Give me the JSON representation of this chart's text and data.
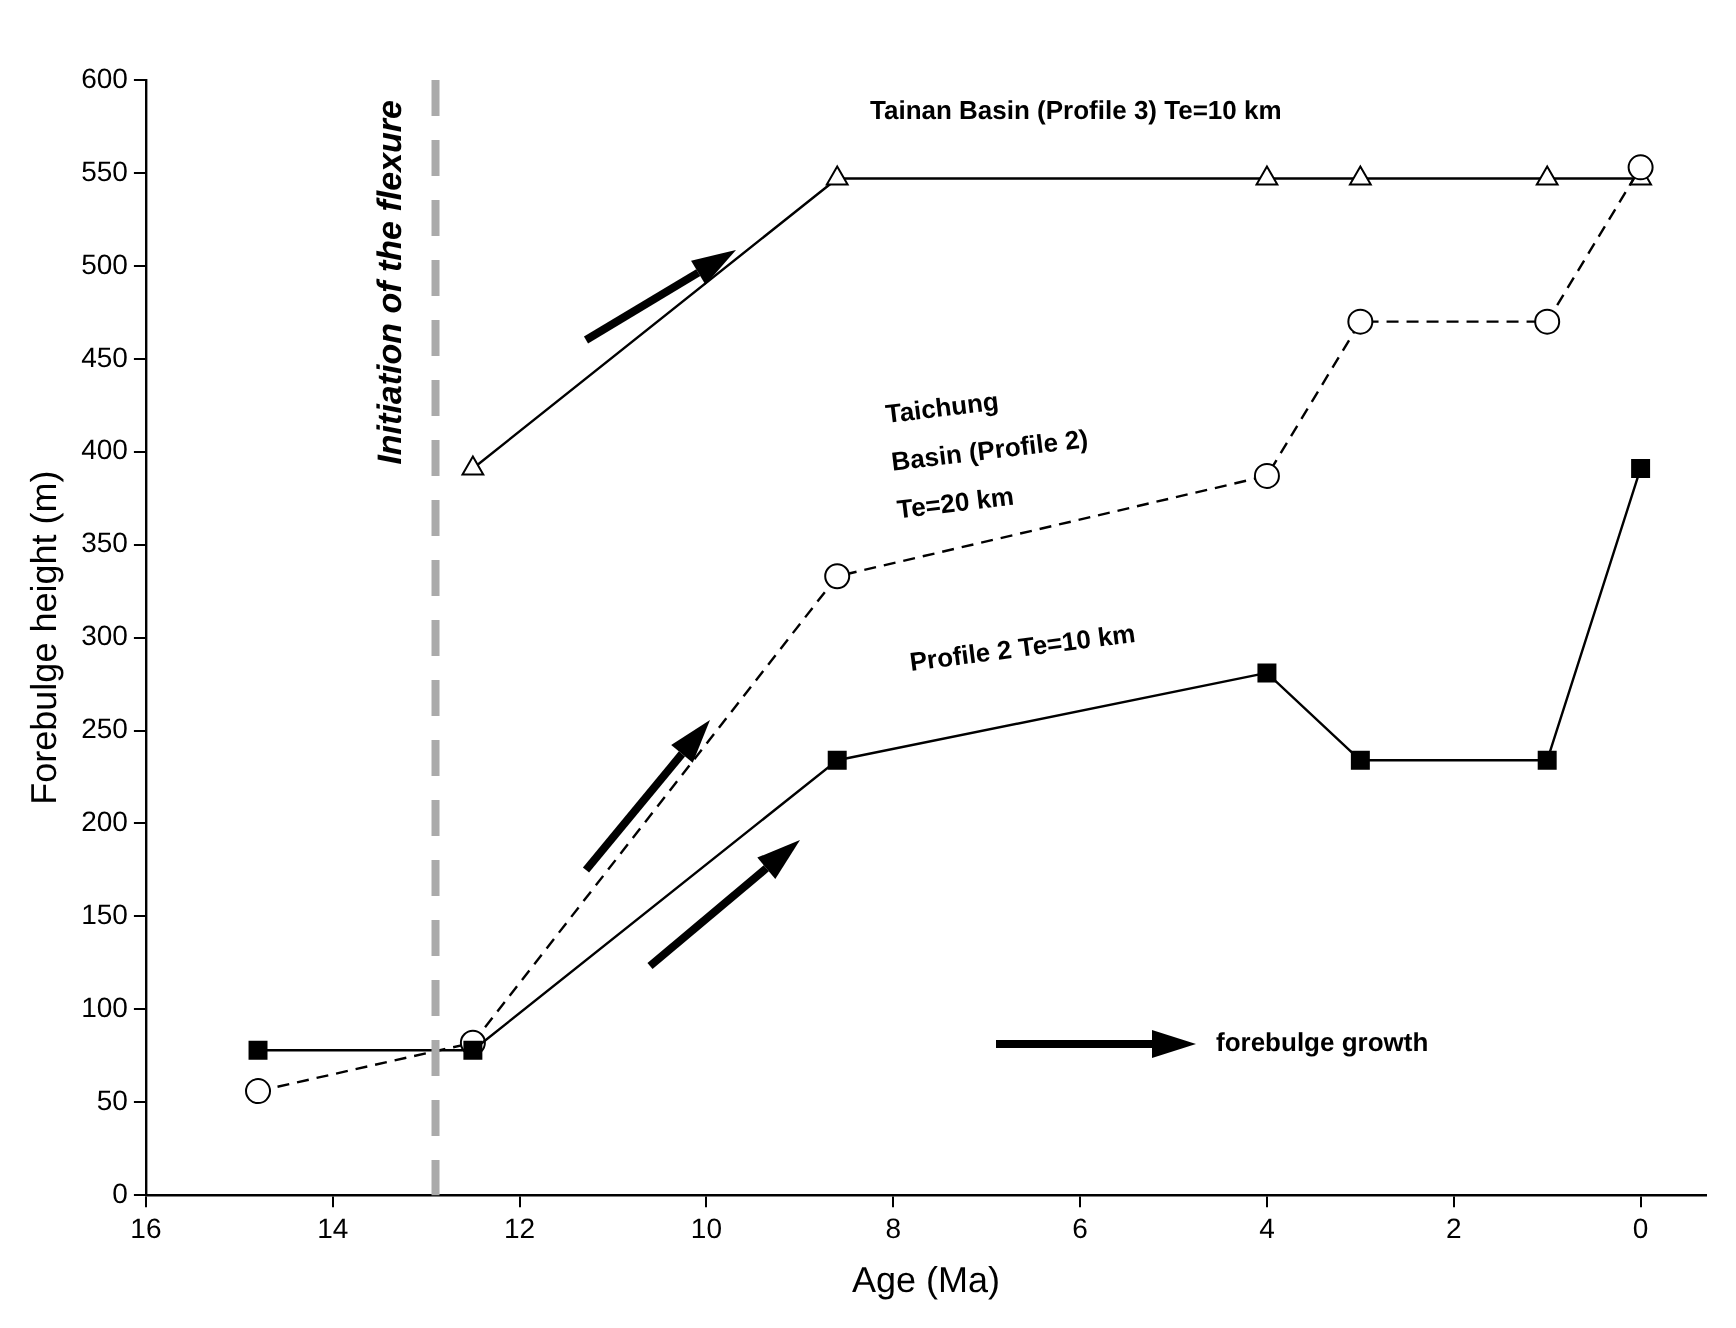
{
  "chart_data": {
    "type": "line",
    "xlabel": "Age (Ma)",
    "ylabel": "Forebulge height (m)",
    "xlim": [
      16,
      -0.7
    ],
    "xticks": [
      16,
      14,
      12,
      10,
      8,
      6,
      4,
      2,
      0
    ],
    "ylim": [
      0,
      600
    ],
    "yticks": [
      0,
      50,
      100,
      150,
      200,
      250,
      300,
      350,
      400,
      450,
      500,
      550,
      600
    ],
    "grid": false,
    "legend": false,
    "series": [
      {
        "name": "Profile 2 Te=10 km",
        "color": "#000000",
        "marker": "square",
        "line_style": "solid",
        "x": [
          14.8,
          12.5,
          8.6,
          4,
          3,
          1,
          0
        ],
        "values": [
          78,
          78,
          234,
          281,
          234,
          234,
          391
        ]
      },
      {
        "name": "Taichung\nBasin (Profile 2)\nTe=20 km",
        "color": "#000000",
        "marker": "circle",
        "line_style": "dashed",
        "x": [
          14.8,
          12.5,
          8.6,
          4,
          3,
          1,
          0
        ],
        "values": [
          56,
          82,
          333,
          387,
          470,
          470,
          553
        ]
      },
      {
        "name": "Tainan Basin (Profile 3) Te=10 km",
        "color": "#000000",
        "marker": "triangle",
        "line_style": "solid",
        "x": [
          12.5,
          8.6,
          4,
          3,
          1,
          0
        ],
        "values": [
          391,
          547,
          547,
          547,
          547,
          547
        ]
      }
    ],
    "ref_lines": [
      {
        "axis": "x",
        "value": 12.9,
        "label": "Initiation of the flexure",
        "color": "#aaaaaa",
        "line_style": "dashed"
      }
    ],
    "annotations": [
      "forebulge growth"
    ]
  }
}
